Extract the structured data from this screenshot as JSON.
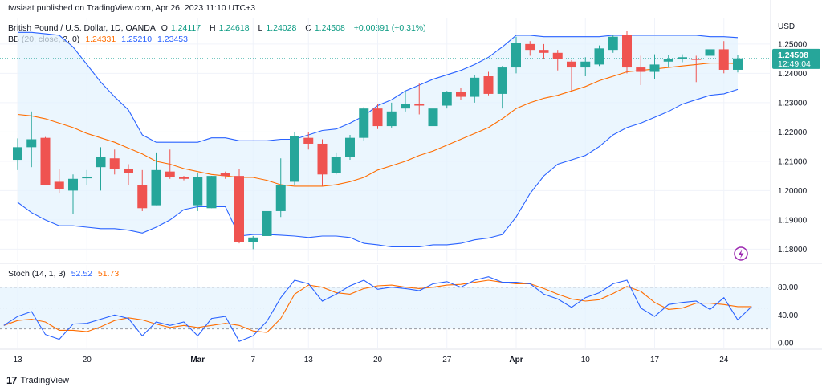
{
  "header": {
    "published": "twsiaat published on TradingView.com, Apr 26, 2023 11:10 UTC+3",
    "symbol": "British Pound / U.S. Dollar, 1D, OANDA",
    "ohlc": {
      "o_label": "O",
      "o": "1.24117",
      "h_label": "H",
      "h": "1.24618",
      "l_label": "L",
      "l": "1.24028",
      "c_label": "C",
      "c": "1.24508",
      "change": "+0.00391 (+0.31%)"
    },
    "bb_label": "BB (20, close, 2, 0)",
    "bb_values": [
      "1.24331",
      "1.25210",
      "1.23453"
    ],
    "stoch_label": "Stoch (14, 1, 3)",
    "stoch_values": [
      "52.52",
      "51.73"
    ]
  },
  "price_tag": {
    "price": "1.24508",
    "countdown": "12:49:04"
  },
  "footer": {
    "brand": "TradingView",
    "mark": "17"
  },
  "colors": {
    "up": "#26a69a",
    "down": "#ef5350",
    "bb_band": "#2962ff",
    "bb_basis": "#ff6d00",
    "band_fill": "#e3f2fd",
    "stoch_k": "#2962ff",
    "stoch_d": "#ff6d00",
    "stoch_fill": "#e3f2fd",
    "tag_bg": "#26a69a",
    "flash_icon": "#9c27b0"
  },
  "chart_data": [
    {
      "type": "candlestick",
      "title": "British Pound / U.S. Dollar, 1D, OANDA",
      "yaxis_label": "USD",
      "y_ticks": [
        "1.25000",
        "1.24000",
        "1.23000",
        "1.22000",
        "1.21000",
        "1.20000",
        "1.19000",
        "1.18000"
      ],
      "ylim": [
        1.176,
        1.259
      ],
      "x_ticks": [
        {
          "i": 0,
          "label": "13"
        },
        {
          "i": 5,
          "label": "20"
        },
        {
          "i": 13,
          "label": "Mar"
        },
        {
          "i": 17,
          "label": "7"
        },
        {
          "i": 21,
          "label": "13"
        },
        {
          "i": 26,
          "label": "20"
        },
        {
          "i": 31,
          "label": "27"
        },
        {
          "i": 36,
          "label": "Apr"
        },
        {
          "i": 41,
          "label": "10"
        },
        {
          "i": 46,
          "label": "17"
        },
        {
          "i": 51,
          "label": "24"
        }
      ],
      "grid": true,
      "current_price_line": 1.24508,
      "candles": [
        {
          "o": 1.2105,
          "h": 1.2178,
          "l": 1.207,
          "c": 1.2148
        },
        {
          "o": 1.2148,
          "h": 1.227,
          "l": 1.208,
          "c": 1.2175
        },
        {
          "o": 1.218,
          "h": 1.2183,
          "l": 1.202,
          "c": 1.202
        },
        {
          "o": 1.203,
          "h": 1.2075,
          "l": 1.199,
          "c": 1.2005
        },
        {
          "o": 1.2,
          "h": 1.2055,
          "l": 1.192,
          "c": 1.204
        },
        {
          "o": 1.2045,
          "h": 1.207,
          "l": 1.202,
          "c": 1.2046
        },
        {
          "o": 1.208,
          "h": 1.2148,
          "l": 1.2,
          "c": 1.2115
        },
        {
          "o": 1.211,
          "h": 1.214,
          "l": 1.2055,
          "c": 1.2075
        },
        {
          "o": 1.2075,
          "h": 1.209,
          "l": 1.202,
          "c": 1.206
        },
        {
          "o": 1.202,
          "h": 1.207,
          "l": 1.193,
          "c": 1.194
        },
        {
          "o": 1.195,
          "h": 1.213,
          "l": 1.195,
          "c": 1.207
        },
        {
          "o": 1.2065,
          "h": 1.214,
          "l": 1.204,
          "c": 1.2045
        },
        {
          "o": 1.2045,
          "h": 1.205,
          "l": 1.2035,
          "c": 1.204
        },
        {
          "o": 1.195,
          "h": 1.206,
          "l": 1.193,
          "c": 1.2045
        },
        {
          "o": 1.194,
          "h": 1.205,
          "l": 1.194,
          "c": 1.205
        },
        {
          "o": 1.206,
          "h": 1.2065,
          "l": 1.204,
          "c": 1.205
        },
        {
          "o": 1.205,
          "h": 1.2075,
          "l": 1.182,
          "c": 1.1825
        },
        {
          "o": 1.1825,
          "h": 1.1845,
          "l": 1.18,
          "c": 1.184
        },
        {
          "o": 1.1845,
          "h": 1.196,
          "l": 1.184,
          "c": 1.193
        },
        {
          "o": 1.193,
          "h": 1.211,
          "l": 1.191,
          "c": 1.202
        },
        {
          "o": 1.203,
          "h": 1.22,
          "l": 1.202,
          "c": 1.2185
        },
        {
          "o": 1.218,
          "h": 1.22,
          "l": 1.214,
          "c": 1.216
        },
        {
          "o": 1.216,
          "h": 1.2175,
          "l": 1.2015,
          "c": 1.2055
        },
        {
          "o": 1.206,
          "h": 1.213,
          "l": 1.2055,
          "c": 1.2115
        },
        {
          "o": 1.2115,
          "h": 1.219,
          "l": 1.2105,
          "c": 1.218
        },
        {
          "o": 1.218,
          "h": 1.2285,
          "l": 1.217,
          "c": 1.228
        },
        {
          "o": 1.228,
          "h": 1.2295,
          "l": 1.221,
          "c": 1.222
        },
        {
          "o": 1.222,
          "h": 1.23,
          "l": 1.2215,
          "c": 1.227
        },
        {
          "o": 1.228,
          "h": 1.234,
          "l": 1.227,
          "c": 1.2295
        },
        {
          "o": 1.2295,
          "h": 1.2365,
          "l": 1.226,
          "c": 1.229
        },
        {
          "o": 1.222,
          "h": 1.229,
          "l": 1.22,
          "c": 1.228
        },
        {
          "o": 1.229,
          "h": 1.234,
          "l": 1.228,
          "c": 1.2338
        },
        {
          "o": 1.2338,
          "h": 1.235,
          "l": 1.231,
          "c": 1.232
        },
        {
          "o": 1.232,
          "h": 1.2395,
          "l": 1.23,
          "c": 1.2385
        },
        {
          "o": 1.239,
          "h": 1.2405,
          "l": 1.2325,
          "c": 1.233
        },
        {
          "o": 1.233,
          "h": 1.2425,
          "l": 1.228,
          "c": 1.242
        },
        {
          "o": 1.242,
          "h": 1.2525,
          "l": 1.24,
          "c": 1.2505
        },
        {
          "o": 1.25,
          "h": 1.251,
          "l": 1.246,
          "c": 1.248
        },
        {
          "o": 1.248,
          "h": 1.25,
          "l": 1.245,
          "c": 1.247
        },
        {
          "o": 1.247,
          "h": 1.248,
          "l": 1.241,
          "c": 1.245
        },
        {
          "o": 1.244,
          "h": 1.2445,
          "l": 1.234,
          "c": 1.242
        },
        {
          "o": 1.242,
          "h": 1.2455,
          "l": 1.239,
          "c": 1.244
        },
        {
          "o": 1.243,
          "h": 1.2495,
          "l": 1.2425,
          "c": 1.2485
        },
        {
          "o": 1.248,
          "h": 1.253,
          "l": 1.247,
          "c": 1.2525
        },
        {
          "o": 1.253,
          "h": 1.2545,
          "l": 1.24,
          "c": 1.242
        },
        {
          "o": 1.242,
          "h": 1.246,
          "l": 1.236,
          "c": 1.2405
        },
        {
          "o": 1.2405,
          "h": 1.2465,
          "l": 1.238,
          "c": 1.243
        },
        {
          "o": 1.244,
          "h": 1.2462,
          "l": 1.242,
          "c": 1.2448
        },
        {
          "o": 1.2448,
          "h": 1.2465,
          "l": 1.2438,
          "c": 1.2455
        },
        {
          "o": 1.245,
          "h": 1.246,
          "l": 1.237,
          "c": 1.2448
        },
        {
          "o": 1.246,
          "h": 1.2485,
          "l": 1.245,
          "c": 1.2482
        },
        {
          "o": 1.2482,
          "h": 1.251,
          "l": 1.24,
          "c": 1.2412
        },
        {
          "o": 1.2412,
          "h": 1.2462,
          "l": 1.2403,
          "c": 1.2451
        }
      ],
      "bb_upper": [
        1.254,
        1.254,
        1.2535,
        1.253,
        1.249,
        1.243,
        1.237,
        1.232,
        1.2275,
        1.219,
        1.2165,
        1.2165,
        1.2165,
        1.2165,
        1.218,
        1.218,
        1.217,
        1.217,
        1.217,
        1.2175,
        1.2175,
        1.219,
        1.2205,
        1.221,
        1.223,
        1.2255,
        1.229,
        1.231,
        1.234,
        1.236,
        1.238,
        1.2395,
        1.241,
        1.243,
        1.2455,
        1.249,
        1.253,
        1.253,
        1.2525,
        1.2525,
        1.2525,
        1.2525,
        1.2525,
        1.253,
        1.253,
        1.253,
        1.253,
        1.253,
        1.253,
        1.253,
        1.2525,
        1.2525,
        1.2522
      ],
      "bb_basis": [
        1.226,
        1.2255,
        1.2245,
        1.223,
        1.2215,
        1.2195,
        1.218,
        1.2165,
        1.2145,
        1.2125,
        1.21,
        1.209,
        1.2075,
        1.2065,
        1.2055,
        1.205,
        1.2045,
        1.2045,
        1.2035,
        1.202,
        1.2015,
        1.2015,
        1.2015,
        1.202,
        1.203,
        1.2045,
        1.207,
        1.2085,
        1.21,
        1.212,
        1.2135,
        1.2155,
        1.2175,
        1.2195,
        1.2215,
        1.2245,
        1.228,
        1.23,
        1.2315,
        1.2325,
        1.234,
        1.2355,
        1.2375,
        1.239,
        1.2405,
        1.241,
        1.2415,
        1.242,
        1.2425,
        1.243,
        1.2435,
        1.2435,
        1.2433
      ],
      "bb_lower": [
        1.196,
        1.1925,
        1.19,
        1.188,
        1.188,
        1.1875,
        1.187,
        1.187,
        1.1865,
        1.1855,
        1.1875,
        1.19,
        1.1935,
        1.1945,
        1.1945,
        1.1945,
        1.1845,
        1.185,
        1.185,
        1.1848,
        1.1845,
        1.184,
        1.1845,
        1.1845,
        1.184,
        1.182,
        1.1815,
        1.1808,
        1.1808,
        1.1808,
        1.1815,
        1.1815,
        1.182,
        1.1832,
        1.1838,
        1.185,
        1.191,
        1.199,
        1.205,
        1.209,
        1.2105,
        1.212,
        1.215,
        1.219,
        1.2215,
        1.223,
        1.225,
        1.227,
        1.2295,
        1.231,
        1.2325,
        1.233,
        1.2345
      ]
    },
    {
      "type": "line",
      "title": "Stoch (14, 1, 3)",
      "y_ticks": [
        "80.00",
        "40.00",
        "0.00"
      ],
      "ylim": [
        -7,
        112
      ],
      "band": [
        20,
        80
      ],
      "midline": 50,
      "series": [
        {
          "name": "%K",
          "values": [
            25,
            38,
            45,
            12,
            5,
            27,
            28,
            34,
            40,
            35,
            10,
            30,
            25,
            30,
            10,
            35,
            38,
            2,
            10,
            31,
            65,
            90,
            85,
            60,
            70,
            82,
            90,
            77,
            80,
            78,
            75,
            85,
            88,
            80,
            90,
            95,
            87,
            87,
            85,
            70,
            63,
            51,
            65,
            72,
            85,
            90,
            50,
            38,
            55,
            58,
            60,
            48,
            65,
            33,
            52
          ]
        },
        {
          "name": "%D",
          "values": [
            25,
            32,
            34,
            30,
            18,
            18,
            16,
            23,
            32,
            36,
            33,
            27,
            22,
            25,
            22,
            25,
            28,
            25,
            17,
            15,
            35,
            70,
            83,
            80,
            72,
            70,
            78,
            82,
            83,
            80,
            78,
            80,
            83,
            84,
            87,
            90,
            87,
            85,
            85,
            78,
            70,
            63,
            60,
            62,
            71,
            81,
            74,
            58,
            48,
            50,
            57,
            57,
            55,
            52,
            52
          ]
        }
      ]
    }
  ]
}
